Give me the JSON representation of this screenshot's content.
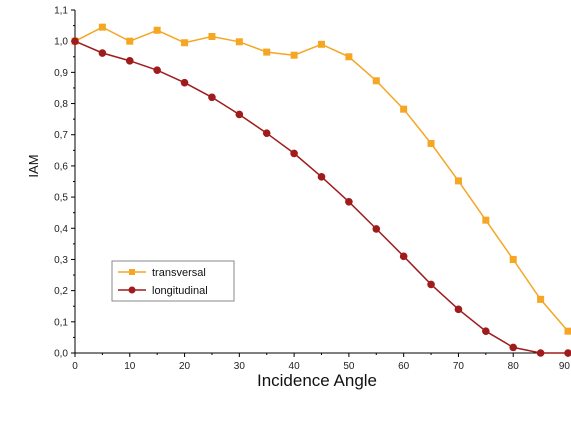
{
  "chart_data": {
    "type": "line",
    "title": "",
    "xlabel": "Incidence Angle",
    "ylabel": "IAM",
    "xlim": [
      0,
      90
    ],
    "ylim": [
      0.0,
      1.1
    ],
    "xticks": [
      "0",
      "10",
      "20",
      "30",
      "40",
      "50",
      "60",
      "70",
      "80",
      "90"
    ],
    "yticks": [
      "0,0",
      "0,1",
      "0,2",
      "0,3",
      "0,4",
      "0,5",
      "0,6",
      "0,7",
      "0,8",
      "0,9",
      "1,0",
      "1,1"
    ],
    "grid": false,
    "legend_position": "lower-left",
    "x": [
      0,
      5,
      10,
      15,
      20,
      25,
      30,
      35,
      40,
      45,
      50,
      55,
      60,
      65,
      70,
      75,
      80,
      85,
      90
    ],
    "series": [
      {
        "name": "transversal",
        "marker": "square",
        "color": "#f5a623",
        "values": [
          1.0,
          1.045,
          1.0,
          1.035,
          0.995,
          1.015,
          0.998,
          0.965,
          0.955,
          0.99,
          0.95,
          0.873,
          0.782,
          0.672,
          0.552,
          0.426,
          0.3,
          0.172,
          0.07
        ]
      },
      {
        "name": "longitudinal",
        "marker": "circle",
        "color": "#a01c1c",
        "values": [
          1.0,
          0.962,
          0.937,
          0.907,
          0.867,
          0.82,
          0.765,
          0.705,
          0.64,
          0.565,
          0.485,
          0.398,
          0.31,
          0.22,
          0.14,
          0.07,
          0.018,
          0.0,
          0.0
        ]
      }
    ]
  }
}
